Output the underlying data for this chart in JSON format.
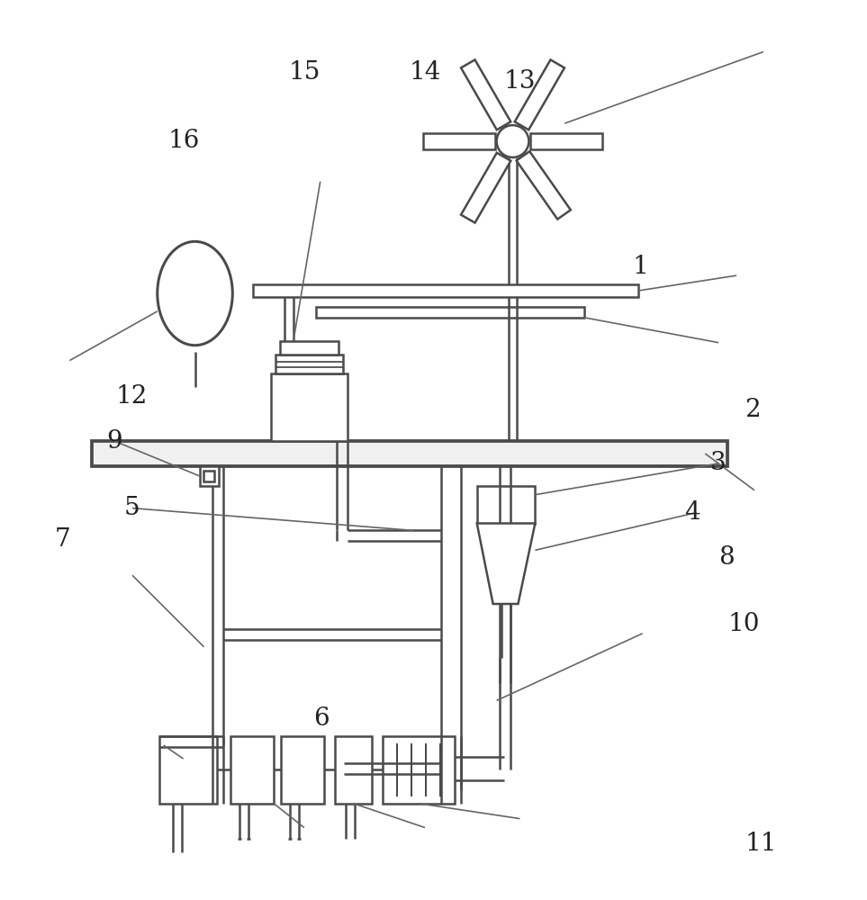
{
  "bg_color": "#ffffff",
  "line_color": "#4a4a4a",
  "lw": 1.8,
  "ann_lw": 1.2,
  "labels": {
    "1": [
      0.74,
      0.295,
      "1"
    ],
    "2": [
      0.87,
      0.455,
      "2"
    ],
    "3": [
      0.83,
      0.515,
      "3"
    ],
    "4": [
      0.8,
      0.57,
      "4"
    ],
    "5": [
      0.15,
      0.565,
      "5"
    ],
    "6": [
      0.37,
      0.8,
      "6"
    ],
    "7": [
      0.07,
      0.6,
      "7"
    ],
    "8": [
      0.84,
      0.62,
      "8"
    ],
    "9": [
      0.13,
      0.49,
      "9"
    ],
    "10": [
      0.86,
      0.695,
      "10"
    ],
    "11": [
      0.88,
      0.94,
      "11"
    ],
    "12": [
      0.15,
      0.44,
      "12"
    ],
    "13": [
      0.6,
      0.088,
      "13"
    ],
    "14": [
      0.49,
      0.078,
      "14"
    ],
    "15": [
      0.35,
      0.078,
      "15"
    ],
    "16": [
      0.21,
      0.155,
      "16"
    ]
  }
}
